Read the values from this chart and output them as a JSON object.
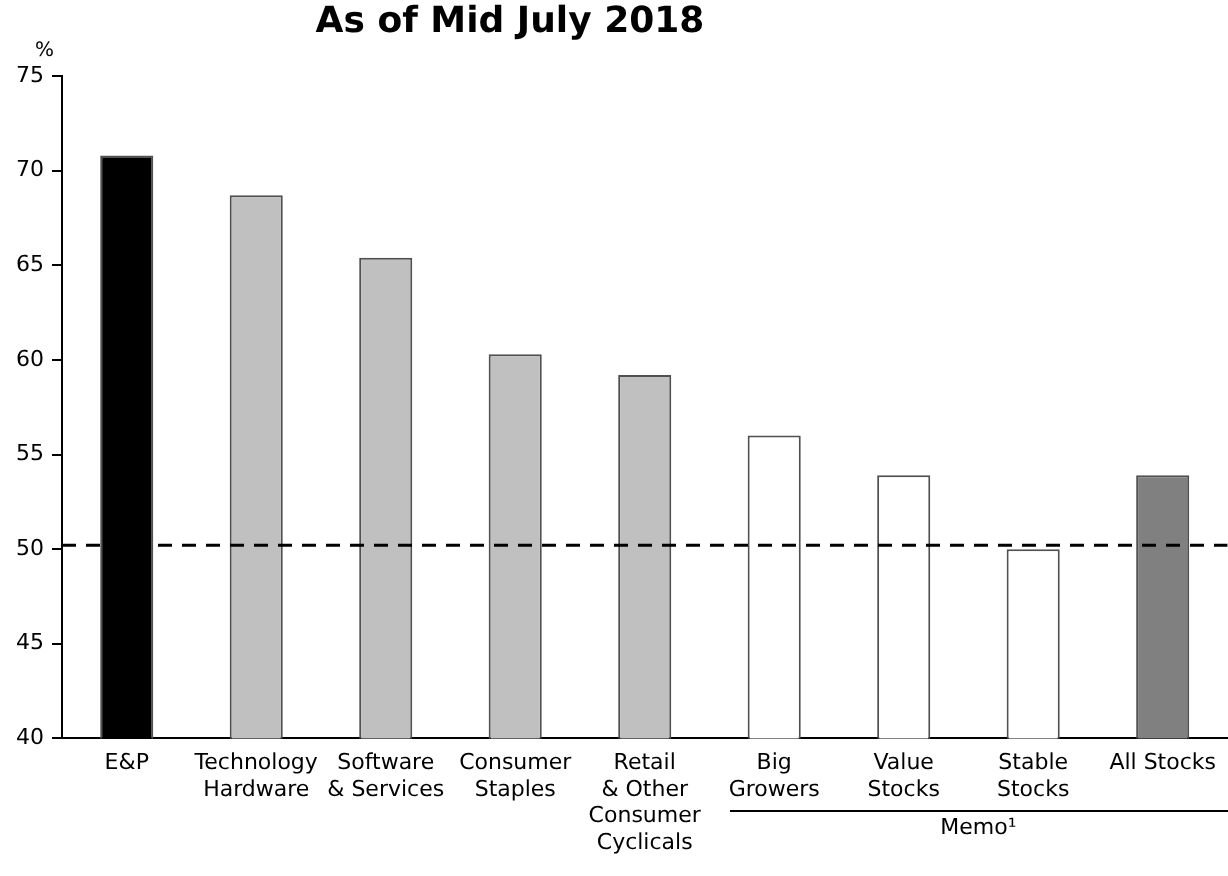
{
  "chart_data": {
    "type": "bar",
    "title": "As of Mid July 2018",
    "ylabel": "%",
    "categories": [
      "E&P",
      "Technology Hardware",
      "Software & Services",
      "Consumer Staples",
      "Retail & Other Consumer Cyclicals",
      "Big Growers",
      "Value Stocks",
      "Stable Stocks",
      "All Stocks"
    ],
    "values": [
      70.8,
      68.7,
      65.4,
      60.3,
      59.2,
      56.0,
      53.9,
      50.0,
      53.9
    ],
    "colors": [
      "#000000",
      "#c0c0c0",
      "#c0c0c0",
      "#c0c0c0",
      "#c0c0c0",
      "#ffffff",
      "#ffffff",
      "#ffffff",
      "#808080"
    ],
    "ylim": [
      40,
      75
    ],
    "yticks": [
      40,
      45,
      50,
      55,
      60,
      65,
      70,
      75
    ],
    "ref_lines": [
      {
        "axis": "y",
        "value": 50.2,
        "color": "#000000",
        "line_style": "dashed"
      }
    ],
    "annotations": [
      "Memo¹"
    ],
    "grid": false,
    "legend": false
  }
}
